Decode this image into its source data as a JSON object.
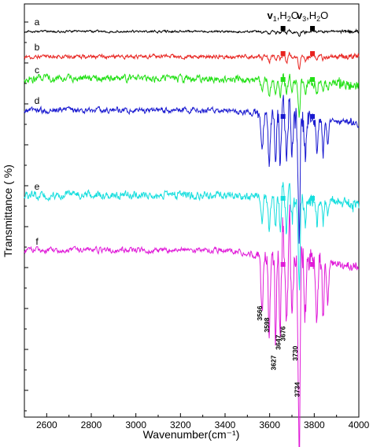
{
  "chart_data": {
    "type": "line",
    "title": "",
    "xlabel": "Wavenumber(cm⁻¹)",
    "ylabel": "Transmittance ( %)",
    "xlim": [
      2500,
      4000
    ],
    "x_ticks": [
      "2600",
      "2800",
      "3000",
      "3200",
      "3400",
      "3600",
      "3800",
      "4000"
    ],
    "y_tick_labels_shown": false,
    "grid": false,
    "series": [
      {
        "name": "a",
        "color": "#000000"
      },
      {
        "name": "b",
        "color": "#e8231f"
      },
      {
        "name": "c",
        "color": "#22e015"
      },
      {
        "name": "d",
        "color": "#1a1ad0"
      },
      {
        "name": "e",
        "color": "#16dede"
      },
      {
        "name": "f",
        "color": "#e01ad8"
      }
    ],
    "band_annotations": [
      {
        "v": "v",
        "sub": "1",
        "mid": ",H",
        "sub2": "2",
        "end": "O",
        "x": 3660
      },
      {
        "v": "v",
        "sub": "3",
        "mid": ",H",
        "sub2": "2",
        "end": "O",
        "x": 3792
      }
    ],
    "peak_labels": [
      "3566",
      "3598",
      "3627",
      "3647",
      "3676",
      "3730",
      "3734"
    ]
  }
}
